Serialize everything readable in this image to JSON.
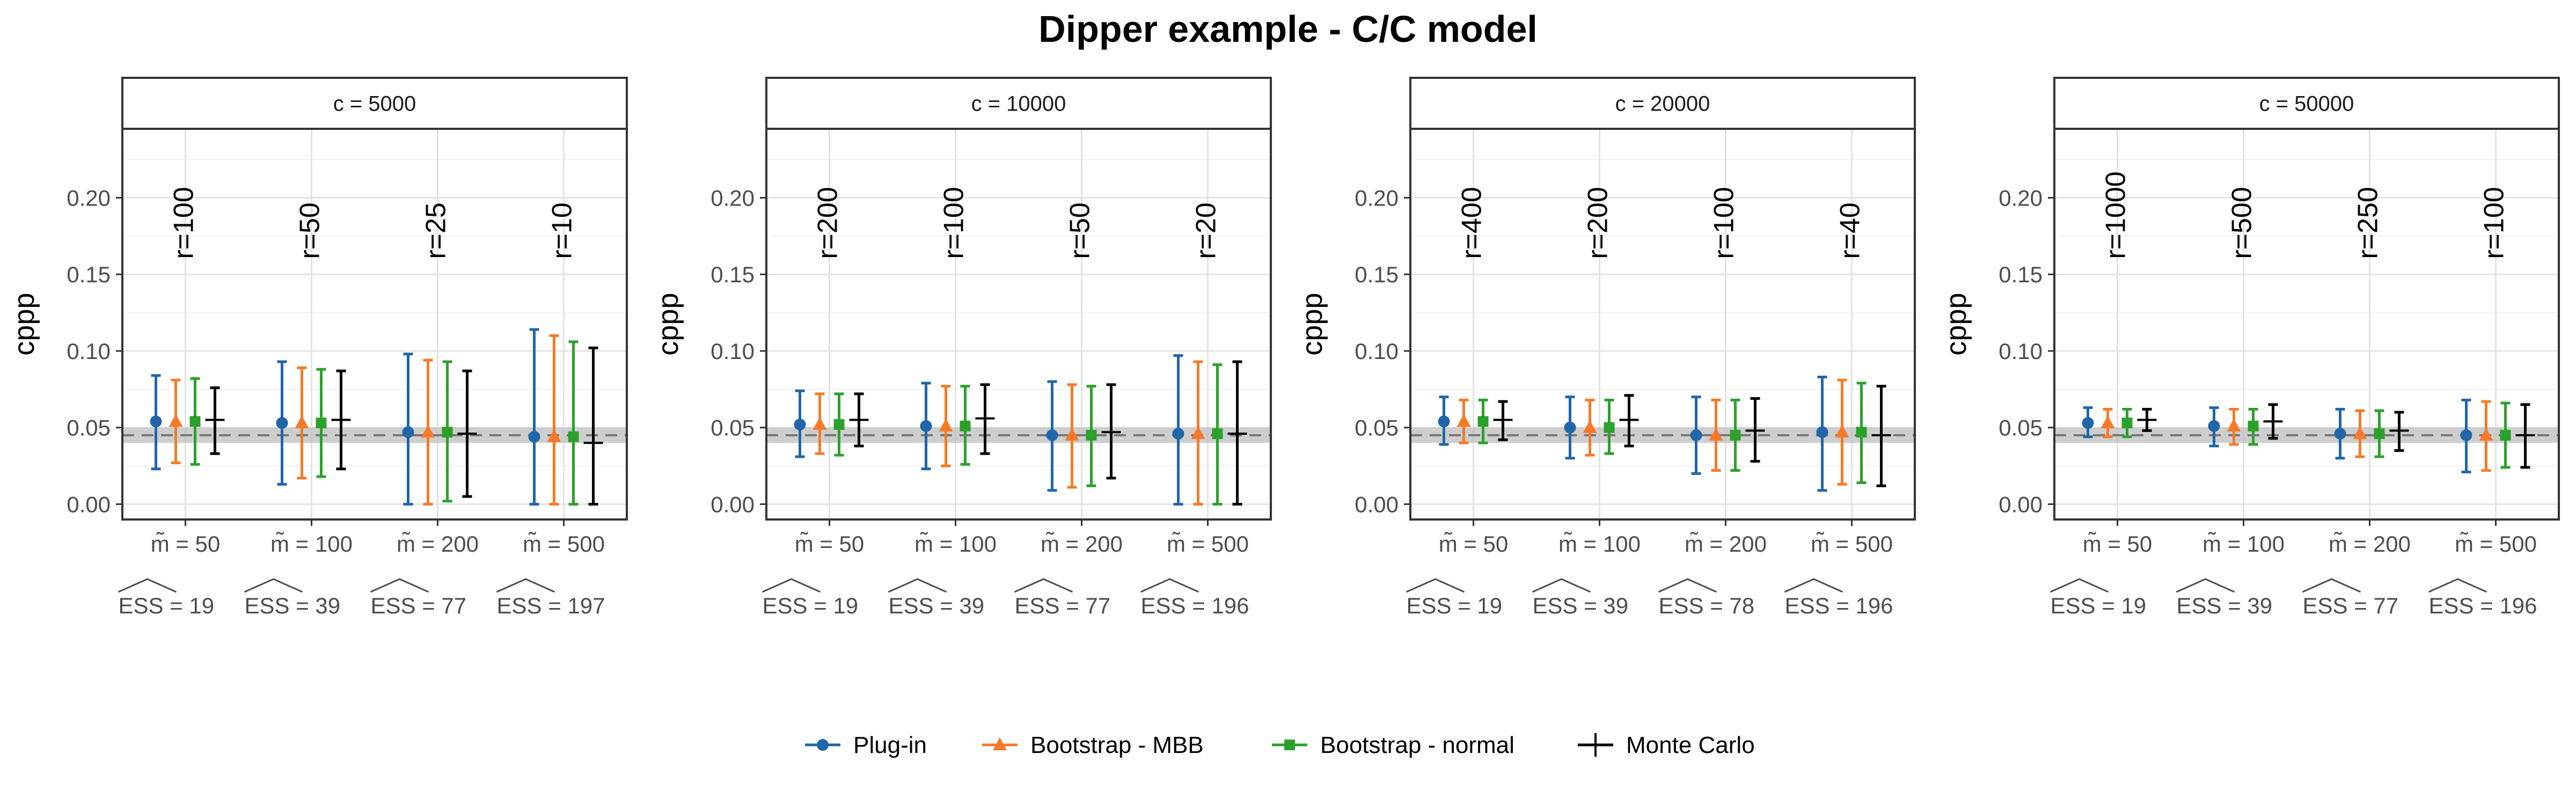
{
  "chart_data": {
    "type": "errorbar",
    "title": "Dipper example - C/C model",
    "ylabel": "cppp",
    "ylim": [
      -0.01,
      0.245
    ],
    "yticks": [
      "0.00",
      "0.05",
      "0.10",
      "0.15",
      "0.20"
    ],
    "reference": {
      "dashed_line": 0.045,
      "band": [
        0.04,
        0.05
      ]
    },
    "grid": true,
    "legend_position": "bottom",
    "series": [
      {
        "name": "Plug-in",
        "color": "#2066a8",
        "marker": "circle"
      },
      {
        "name": "Bootstrap - MBB",
        "color": "#f57a28",
        "marker": "triangle"
      },
      {
        "name": "Bootstrap - normal",
        "color": "#2ca02c",
        "marker": "square"
      },
      {
        "name": "Monte Carlo",
        "color": "#000000",
        "marker": "cross"
      }
    ],
    "x_labels": [
      "m̃ = 50",
      "m̃ = 100",
      "m̃ = 200",
      "m̃ = 500"
    ],
    "ess_prefix": "ESS = ",
    "panels": [
      {
        "strip": "c = 5000",
        "r_labels": [
          "r=100",
          "r=50",
          "r=25",
          "r=10"
        ],
        "ess": [
          "19",
          "39",
          "77",
          "197"
        ],
        "groups": [
          {
            "point": [
              0.054,
              0.054,
              0.054,
              0.055
            ],
            "low": [
              0.023,
              0.027,
              0.026,
              0.033
            ],
            "high": [
              0.084,
              0.081,
              0.082,
              0.076
            ]
          },
          {
            "point": [
              0.053,
              0.053,
              0.053,
              0.055
            ],
            "low": [
              0.013,
              0.017,
              0.018,
              0.023
            ],
            "high": [
              0.093,
              0.089,
              0.088,
              0.087
            ]
          },
          {
            "point": [
              0.047,
              0.047,
              0.047,
              0.046
            ],
            "low": [
              0.0,
              0.0,
              0.002,
              0.005
            ],
            "high": [
              0.098,
              0.094,
              0.093,
              0.087
            ]
          },
          {
            "point": [
              0.044,
              0.044,
              0.044,
              0.04
            ],
            "low": [
              0.0,
              0.0,
              0.0,
              0.0
            ],
            "high": [
              0.114,
              0.11,
              0.106,
              0.102
            ]
          }
        ]
      },
      {
        "strip": "c = 10000",
        "r_labels": [
          "r=200",
          "r=100",
          "r=50",
          "r=20"
        ],
        "ess": [
          "19",
          "39",
          "77",
          "196"
        ],
        "groups": [
          {
            "point": [
              0.052,
              0.052,
              0.052,
              0.055
            ],
            "low": [
              0.031,
              0.033,
              0.032,
              0.038
            ],
            "high": [
              0.074,
              0.072,
              0.072,
              0.072
            ]
          },
          {
            "point": [
              0.051,
              0.051,
              0.051,
              0.056
            ],
            "low": [
              0.023,
              0.025,
              0.026,
              0.033
            ],
            "high": [
              0.079,
              0.077,
              0.077,
              0.078
            ]
          },
          {
            "point": [
              0.045,
              0.045,
              0.045,
              0.047
            ],
            "low": [
              0.009,
              0.011,
              0.012,
              0.017
            ],
            "high": [
              0.08,
              0.078,
              0.077,
              0.078
            ]
          },
          {
            "point": [
              0.046,
              0.046,
              0.046,
              0.046
            ],
            "low": [
              0.0,
              0.0,
              0.0,
              0.0
            ],
            "high": [
              0.097,
              0.093,
              0.091,
              0.093
            ]
          }
        ]
      },
      {
        "strip": "c = 20000",
        "r_labels": [
          "r=400",
          "r=200",
          "r=100",
          "r=40"
        ],
        "ess": [
          "19",
          "39",
          "78",
          "196"
        ],
        "groups": [
          {
            "point": [
              0.054,
              0.054,
              0.054,
              0.055
            ],
            "low": [
              0.039,
              0.04,
              0.04,
              0.042
            ],
            "high": [
              0.07,
              0.068,
              0.068,
              0.067
            ]
          },
          {
            "point": [
              0.05,
              0.05,
              0.05,
              0.055
            ],
            "low": [
              0.03,
              0.032,
              0.033,
              0.038
            ],
            "high": [
              0.07,
              0.068,
              0.068,
              0.071
            ]
          },
          {
            "point": [
              0.045,
              0.045,
              0.045,
              0.048
            ],
            "low": [
              0.02,
              0.022,
              0.022,
              0.028
            ],
            "high": [
              0.07,
              0.068,
              0.068,
              0.069
            ]
          },
          {
            "point": [
              0.047,
              0.047,
              0.047,
              0.045
            ],
            "low": [
              0.009,
              0.013,
              0.014,
              0.012
            ],
            "high": [
              0.083,
              0.081,
              0.079,
              0.077
            ]
          }
        ]
      },
      {
        "strip": "c = 50000",
        "r_labels": [
          "r=1000",
          "r=500",
          "r=250",
          "r=100"
        ],
        "ess": [
          "19",
          "39",
          "77",
          "196"
        ],
        "groups": [
          {
            "point": [
              0.053,
              0.053,
              0.053,
              0.055
            ],
            "low": [
              0.044,
              0.044,
              0.044,
              0.048
            ],
            "high": [
              0.063,
              0.062,
              0.062,
              0.062
            ]
          },
          {
            "point": [
              0.051,
              0.051,
              0.051,
              0.054
            ],
            "low": [
              0.038,
              0.039,
              0.039,
              0.043
            ],
            "high": [
              0.063,
              0.062,
              0.062,
              0.065
            ]
          },
          {
            "point": [
              0.046,
              0.046,
              0.046,
              0.048
            ],
            "low": [
              0.03,
              0.031,
              0.031,
              0.035
            ],
            "high": [
              0.062,
              0.061,
              0.061,
              0.06
            ]
          },
          {
            "point": [
              0.045,
              0.045,
              0.045,
              0.045
            ],
            "low": [
              0.021,
              0.022,
              0.024,
              0.024
            ],
            "high": [
              0.068,
              0.067,
              0.066,
              0.065
            ]
          }
        ]
      }
    ]
  }
}
